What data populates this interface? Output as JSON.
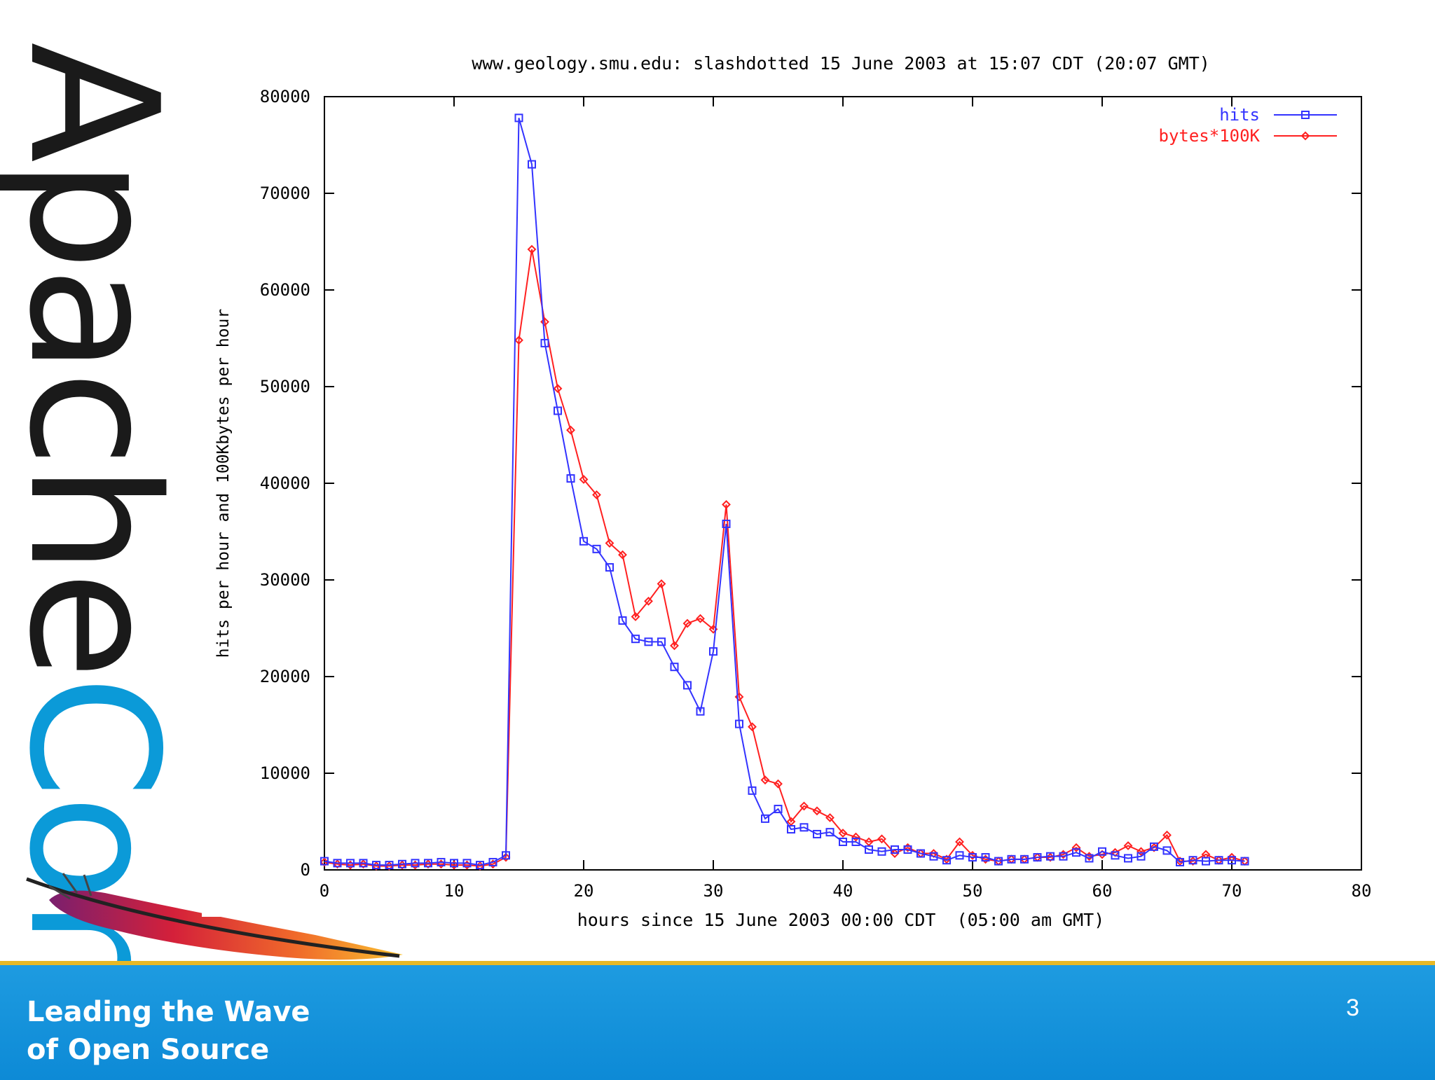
{
  "logo": {
    "part1": "Apache",
    "part2": "Con",
    "accent": "#0b9ad8",
    "icon": "feather-icon"
  },
  "footer": {
    "tagline_line1": "Leading the Wave",
    "tagline_line2": "of Open Source",
    "slide_number": "3",
    "background": "#1e9be0",
    "stripe": "#e8b825"
  },
  "chart_data": {
    "type": "line",
    "title": "www.geology.smu.edu: slashdotted 15 June 2003 at 15:07 CDT (20:07 GMT)",
    "xlabel": "hours since 15 June 2003 00:00 CDT  (05:00 am GMT)",
    "ylabel": "hits per hour and 100Kbytes per hour",
    "xlim": [
      0,
      80
    ],
    "ylim": [
      0,
      80000
    ],
    "xticks": [
      0,
      10,
      20,
      30,
      40,
      50,
      60,
      70,
      80
    ],
    "yticks": [
      0,
      10000,
      20000,
      30000,
      40000,
      50000,
      60000,
      70000,
      80000
    ],
    "grid": false,
    "legend_position": "top-right",
    "x": [
      0,
      1,
      2,
      3,
      4,
      5,
      6,
      7,
      8,
      9,
      10,
      11,
      12,
      13,
      14,
      15,
      16,
      17,
      18,
      19,
      20,
      21,
      22,
      23,
      24,
      25,
      26,
      27,
      28,
      29,
      30,
      31,
      32,
      33,
      34,
      35,
      36,
      37,
      38,
      39,
      40,
      41,
      42,
      43,
      44,
      45,
      46,
      47,
      48,
      49,
      50,
      51,
      52,
      53,
      54,
      55,
      56,
      57,
      58,
      59,
      60,
      61,
      62,
      63,
      64,
      65,
      66,
      67,
      68,
      69,
      70,
      71
    ],
    "series": [
      {
        "name": "hits",
        "color": "#3333ff",
        "marker": "square",
        "values": [
          900,
          700,
          700,
          700,
          500,
          500,
          600,
          700,
          700,
          800,
          700,
          700,
          500,
          800,
          1500,
          77800,
          73000,
          54500,
          47500,
          40500,
          34000,
          33200,
          31300,
          25800,
          23900,
          23600,
          23600,
          21000,
          19100,
          16400,
          22600,
          35800,
          15100,
          8200,
          5300,
          6300,
          4200,
          4400,
          3700,
          3900,
          2900,
          2900,
          2100,
          1900,
          2100,
          2100,
          1700,
          1400,
          1000,
          1500,
          1300,
          1300,
          900,
          1100,
          1100,
          1300,
          1400,
          1400,
          1800,
          1200,
          1900,
          1500,
          1200,
          1400,
          2400,
          2000,
          800,
          1000,
          900,
          1000,
          1000,
          900
        ]
      },
      {
        "name": "bytes*100K",
        "color": "#ff2020",
        "marker": "diamond",
        "values": [
          800,
          600,
          500,
          600,
          400,
          400,
          500,
          500,
          600,
          600,
          500,
          500,
          400,
          600,
          1300,
          54800,
          64200,
          56700,
          49800,
          45500,
          40400,
          38800,
          33800,
          32600,
          26200,
          27800,
          29600,
          23200,
          25500,
          26000,
          24900,
          37800,
          17900,
          14800,
          9300,
          8900,
          5000,
          6600,
          6100,
          5400,
          3800,
          3400,
          2900,
          3200,
          1700,
          2300,
          1700,
          1700,
          1100,
          2900,
          1500,
          1100,
          900,
          1100,
          1100,
          1300,
          1300,
          1600,
          2300,
          1400,
          1600,
          1800,
          2500,
          1900,
          2300,
          3600,
          900,
          900,
          1600,
          1000,
          1300,
          900
        ]
      }
    ]
  }
}
